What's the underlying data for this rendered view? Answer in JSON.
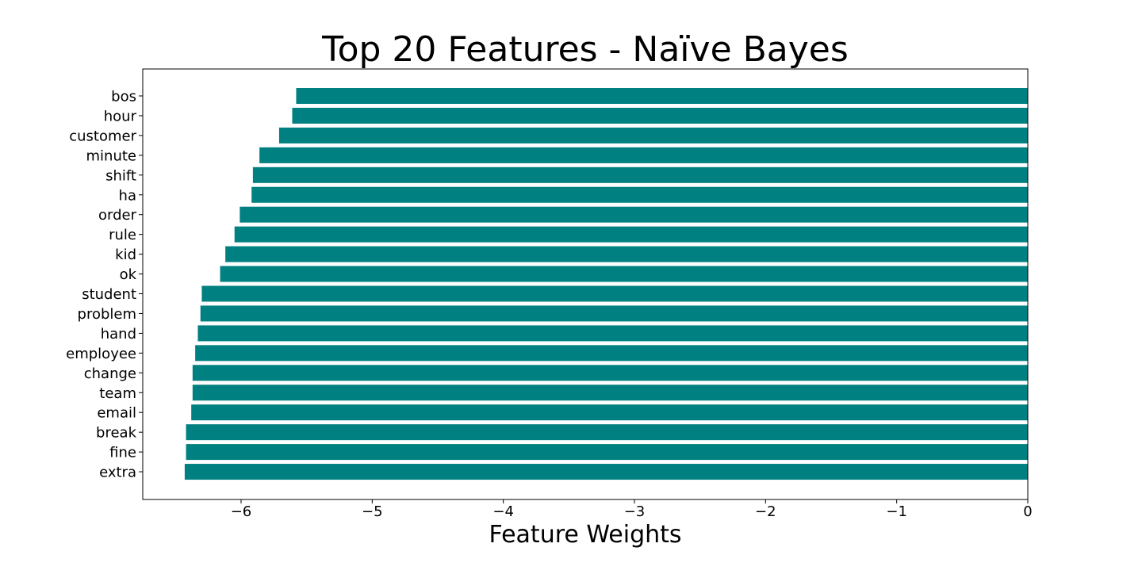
{
  "chart_data": {
    "type": "bar",
    "orientation": "horizontal",
    "title": "Top 20 Features - Naïve Bayes",
    "xlabel": "Feature Weights",
    "ylabel": "",
    "categories": [
      "bos",
      "hour",
      "customer",
      "minute",
      "shift",
      "ha",
      "order",
      "rule",
      "kid",
      "ok",
      "student",
      "problem",
      "hand",
      "employee",
      "change",
      "team",
      "email",
      "break",
      "fine",
      "extra"
    ],
    "values": [
      -5.58,
      -5.61,
      -5.71,
      -5.86,
      -5.91,
      -5.92,
      -6.01,
      -6.05,
      -6.12,
      -6.16,
      -6.3,
      -6.31,
      -6.33,
      -6.35,
      -6.37,
      -6.37,
      -6.38,
      -6.42,
      -6.42,
      -6.43
    ],
    "xlim": [
      -6.75,
      0
    ],
    "xticks": [
      -6,
      -5,
      -4,
      -3,
      -2,
      -1,
      0
    ],
    "xtick_labels": [
      "−6",
      "−5",
      "−4",
      "−3",
      "−2",
      "−1",
      "0"
    ],
    "grid": false,
    "bar_color": "#008080"
  }
}
